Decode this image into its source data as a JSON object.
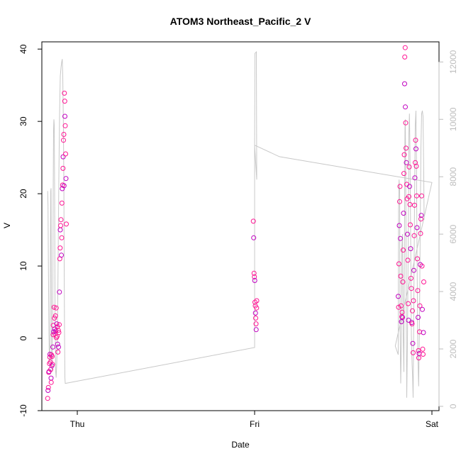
{
  "chart_data": {
    "type": "scatter",
    "title": "ATOM3 Northeast_Pacific_2 V",
    "xlabel": "Date",
    "ylabel": "V",
    "x_ticks": [
      {
        "label": "Thu",
        "value": 1.0
      },
      {
        "label": "Fri",
        "value": 2.0
      },
      {
        "label": "Sat",
        "value": 3.0
      }
    ],
    "xlim": [
      0.8,
      3.04
    ],
    "ylim": [
      -10,
      41
    ],
    "y_ticks": [
      -10,
      0,
      10,
      20,
      30,
      40
    ],
    "y2lim": [
      -150,
      12700
    ],
    "y2_ticks": [
      0,
      2000,
      4000,
      6000,
      8000,
      10000,
      12000
    ],
    "grid": false,
    "colors": {
      "points": "#ff1493",
      "points_alt": "#c000c0",
      "line": "#c8c8c8",
      "axis": "#000000",
      "axis_right": "#bdbdbd"
    },
    "series": [
      {
        "axis": "left",
        "kind": "points",
        "points": [
          [
            0.833,
            -8.3
          ],
          [
            0.835,
            -7.2
          ],
          [
            0.837,
            -6.8
          ],
          [
            0.839,
            -4.7
          ],
          [
            0.841,
            -4.6
          ],
          [
            0.843,
            -3.5
          ],
          [
            0.845,
            -2.6
          ],
          [
            0.846,
            -2.2
          ],
          [
            0.848,
            -3.3
          ],
          [
            0.85,
            -4.3
          ],
          [
            0.852,
            -5.5
          ],
          [
            0.853,
            -6.1
          ],
          [
            0.855,
            -2.3
          ],
          [
            0.857,
            -3.8
          ],
          [
            0.858,
            -2.5
          ],
          [
            0.86,
            -3.6
          ],
          [
            0.862,
            -1.2
          ],
          [
            0.864,
            0.5
          ],
          [
            0.865,
            1.8
          ],
          [
            0.867,
            0.9
          ],
          [
            0.869,
            4.3
          ],
          [
            0.871,
            2.8
          ],
          [
            0.873,
            1.3
          ],
          [
            0.875,
            0.6
          ],
          [
            0.877,
            3.1
          ],
          [
            0.879,
            1.0
          ],
          [
            0.881,
            4.2
          ],
          [
            0.882,
            0.1
          ],
          [
            0.884,
            2.0
          ],
          [
            0.886,
            0.3
          ],
          [
            0.888,
            1.6
          ],
          [
            0.889,
            -0.8
          ],
          [
            0.891,
            -1.9
          ],
          [
            0.893,
            1.1
          ],
          [
            0.894,
            -1.2
          ],
          [
            0.896,
            0.8
          ],
          [
            0.898,
            1.9
          ],
          [
            0.899,
            6.4
          ],
          [
            0.901,
            11.0
          ],
          [
            0.903,
            12.5
          ],
          [
            0.904,
            15.0
          ],
          [
            0.906,
            15.6
          ],
          [
            0.908,
            16.4
          ],
          [
            0.91,
            11.5
          ],
          [
            0.912,
            13.9
          ],
          [
            0.913,
            18.7
          ],
          [
            0.915,
            20.7
          ],
          [
            0.917,
            21.2
          ],
          [
            0.919,
            23.5
          ],
          [
            0.92,
            25.1
          ],
          [
            0.922,
            27.4
          ],
          [
            0.924,
            28.2
          ],
          [
            0.925,
            21.1
          ],
          [
            0.927,
            33.9
          ],
          [
            0.929,
            32.8
          ],
          [
            0.93,
            30.7
          ],
          [
            0.932,
            29.4
          ],
          [
            0.934,
            25.5
          ],
          [
            0.936,
            22.1
          ],
          [
            0.938,
            15.8
          ],
          [
            1.993,
            16.2
          ],
          [
            1.995,
            13.9
          ],
          [
            1.997,
            9.0
          ],
          [
            1.999,
            8.5
          ],
          [
            2.001,
            8.0
          ],
          [
            2.002,
            5.0
          ],
          [
            2.004,
            4.5
          ],
          [
            2.005,
            3.5
          ],
          [
            2.006,
            2.8
          ],
          [
            2.008,
            2.0
          ],
          [
            2.009,
            1.2
          ],
          [
            2.011,
            4.2
          ],
          [
            2.012,
            5.2
          ],
          [
            2.81,
            5.8
          ],
          [
            2.812,
            4.3
          ],
          [
            2.814,
            10.3
          ],
          [
            2.816,
            15.6
          ],
          [
            2.818,
            18.9
          ],
          [
            2.82,
            21.0
          ],
          [
            2.822,
            13.8
          ],
          [
            2.824,
            8.6
          ],
          [
            2.826,
            4.5
          ],
          [
            2.828,
            2.3
          ],
          [
            2.83,
            3.0
          ],
          [
            2.832,
            3.6
          ],
          [
            2.834,
            2.9
          ],
          [
            2.836,
            7.8
          ],
          [
            2.838,
            12.2
          ],
          [
            2.84,
            17.3
          ],
          [
            2.842,
            22.8
          ],
          [
            2.844,
            25.4
          ],
          [
            2.846,
            35.2
          ],
          [
            2.847,
            38.9
          ],
          [
            2.849,
            40.2
          ],
          [
            2.85,
            32.0
          ],
          [
            2.852,
            29.8
          ],
          [
            2.854,
            26.3
          ],
          [
            2.856,
            24.3
          ],
          [
            2.858,
            21.3
          ],
          [
            2.86,
            19.3
          ],
          [
            2.862,
            14.4
          ],
          [
            2.864,
            10.8
          ],
          [
            2.866,
            4.8
          ],
          [
            2.868,
            2.5
          ],
          [
            2.87,
            19.6
          ],
          [
            2.872,
            23.7
          ],
          [
            2.874,
            21.0
          ],
          [
            2.876,
            18.5
          ],
          [
            2.878,
            15.7
          ],
          [
            2.88,
            12.4
          ],
          [
            2.882,
            8.3
          ],
          [
            2.884,
            6.9
          ],
          [
            2.886,
            2.2
          ],
          [
            2.888,
            2.0
          ],
          [
            2.89,
            3.8
          ],
          [
            2.892,
            -0.7
          ],
          [
            2.894,
            -2.0
          ],
          [
            2.896,
            5.2
          ],
          [
            2.898,
            9.4
          ],
          [
            2.9,
            14.2
          ],
          [
            2.902,
            18.4
          ],
          [
            2.904,
            22.2
          ],
          [
            2.906,
            24.3
          ],
          [
            2.908,
            27.4
          ],
          [
            2.91,
            26.2
          ],
          [
            2.912,
            23.8
          ],
          [
            2.914,
            19.7
          ],
          [
            2.916,
            15.3
          ],
          [
            2.918,
            11.0
          ],
          [
            2.92,
            6.6
          ],
          [
            2.922,
            2.9
          ],
          [
            2.924,
            -1.7
          ],
          [
            2.926,
            -2.7
          ],
          [
            2.928,
            -2.1
          ],
          [
            2.93,
            0.9
          ],
          [
            2.932,
            4.5
          ],
          [
            2.934,
            10.2
          ],
          [
            2.936,
            14.5
          ],
          [
            2.938,
            16.5
          ],
          [
            2.94,
            17.0
          ],
          [
            2.942,
            19.7
          ],
          [
            2.944,
            10.0
          ],
          [
            2.946,
            4.0
          ],
          [
            2.948,
            -1.5
          ],
          [
            2.95,
            -2.2
          ],
          [
            2.952,
            0.8
          ],
          [
            2.954,
            7.8
          ]
        ]
      },
      {
        "axis": "right",
        "kind": "line",
        "points": [
          [
            0.833,
            7500
          ],
          [
            0.835,
            7000
          ],
          [
            0.837,
            5000
          ],
          [
            0.84,
            2500
          ],
          [
            0.843,
            1500
          ],
          [
            0.846,
            2200
          ],
          [
            0.85,
            7500
          ],
          [
            0.852,
            7600
          ],
          [
            0.855,
            1800
          ],
          [
            0.858,
            1200
          ],
          [
            0.862,
            3500
          ],
          [
            0.864,
            7500
          ],
          [
            0.866,
            9600
          ],
          [
            0.868,
            10000
          ],
          [
            0.87,
            9800
          ],
          [
            0.872,
            7500
          ],
          [
            0.875,
            2800
          ],
          [
            0.878,
            1200
          ],
          [
            0.881,
            1000
          ],
          [
            0.884,
            1500
          ],
          [
            0.888,
            2400
          ],
          [
            0.892,
            5200
          ],
          [
            0.896,
            8000
          ],
          [
            0.9,
            10200
          ],
          [
            0.904,
            11500
          ],
          [
            0.908,
            11800
          ],
          [
            0.912,
            12000
          ],
          [
            0.915,
            12100
          ],
          [
            0.918,
            11500
          ],
          [
            0.921,
            10000
          ],
          [
            0.924,
            8000
          ],
          [
            0.926,
            5000
          ],
          [
            0.928,
            2500
          ],
          [
            0.93,
            1000
          ],
          [
            0.932,
            800
          ],
          [
            2.0,
            2050
          ],
          [
            2.0,
            9100
          ],
          [
            2.002,
            12300
          ],
          [
            2.01,
            12350
          ],
          [
            2.012,
            7900
          ],
          [
            2.0,
            9100
          ],
          [
            2.14,
            8700
          ],
          [
            3.0,
            7800
          ],
          [
            2.793,
            2100
          ],
          [
            2.81,
            1800
          ],
          [
            2.812,
            7000
          ],
          [
            2.815,
            7900
          ],
          [
            2.818,
            7500
          ],
          [
            2.82,
            3000
          ],
          [
            2.824,
            800
          ],
          [
            2.827,
            2000
          ],
          [
            2.83,
            5500
          ],
          [
            2.834,
            6000
          ],
          [
            2.838,
            2500
          ],
          [
            2.842,
            1200
          ],
          [
            2.845,
            5800
          ],
          [
            2.848,
            9700
          ],
          [
            2.85,
            10000
          ],
          [
            2.853,
            7000
          ],
          [
            2.856,
            2500
          ],
          [
            2.858,
            300
          ],
          [
            2.862,
            2200
          ],
          [
            2.866,
            5500
          ],
          [
            2.87,
            9500
          ],
          [
            2.873,
            10200
          ],
          [
            2.876,
            9000
          ],
          [
            2.88,
            6000
          ],
          [
            2.884,
            2500
          ],
          [
            2.888,
            1500
          ],
          [
            2.891,
            1000
          ],
          [
            2.894,
            300
          ],
          [
            2.898,
            3500
          ],
          [
            2.902,
            7200
          ],
          [
            2.906,
            9800
          ],
          [
            2.91,
            10300
          ],
          [
            2.913,
            8500
          ],
          [
            2.916,
            5500
          ],
          [
            2.92,
            2000
          ],
          [
            2.925,
            700
          ],
          [
            2.93,
            3000
          ],
          [
            2.934,
            6200
          ],
          [
            2.938,
            9000
          ],
          [
            2.942,
            10200
          ],
          [
            2.946,
            10300
          ],
          [
            2.95,
            10100
          ],
          [
            2.954,
            8000
          ],
          [
            2.956,
            6500
          ]
        ]
      }
    ]
  }
}
